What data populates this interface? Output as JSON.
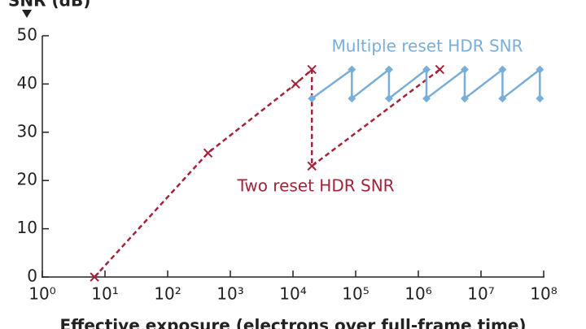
{
  "chart_data": {
    "type": "line",
    "y_label": "SNR (dB)",
    "x_label": "Effective exposure (electrons over full-frame time)",
    "log_x": true,
    "xlim": [
      1,
      100000000
    ],
    "xticks": [
      {
        "value": 1,
        "label": "10⁰"
      },
      {
        "value": 10,
        "label": "10¹"
      },
      {
        "value": 100,
        "label": "10²"
      },
      {
        "value": 1000,
        "label": "10³"
      },
      {
        "value": 10000,
        "label": "10⁴"
      },
      {
        "value": 100000,
        "label": "10⁵"
      },
      {
        "value": 1000000,
        "label": "10⁶"
      },
      {
        "value": 10000000,
        "label": "10⁷"
      },
      {
        "value": 100000000,
        "label": "10⁸"
      }
    ],
    "ylim": [
      0,
      50
    ],
    "yticks": [
      0,
      10,
      20,
      30,
      40,
      50
    ],
    "series": [
      {
        "name": "Two reset HDR SNR",
        "color": "#a3233a",
        "style": "dashed",
        "marker": "x",
        "x": [
          6.8,
          440,
          11000,
          20000,
          20000,
          2200000
        ],
        "values": [
          0,
          25.7,
          40,
          43,
          23,
          43
        ]
      },
      {
        "name": "Multiple reset HDR SNR",
        "color": "#7aaed8",
        "style": "solid",
        "marker": "diamond",
        "x": [
          20000,
          87000,
          87000,
          340000,
          340000,
          1350000,
          1350000,
          5500000,
          5500000,
          22000000,
          22000000,
          87000000,
          87000000
        ],
        "values": [
          37,
          43,
          37,
          43,
          37,
          43,
          37,
          43,
          37,
          43,
          37,
          43,
          37
        ]
      }
    ]
  }
}
